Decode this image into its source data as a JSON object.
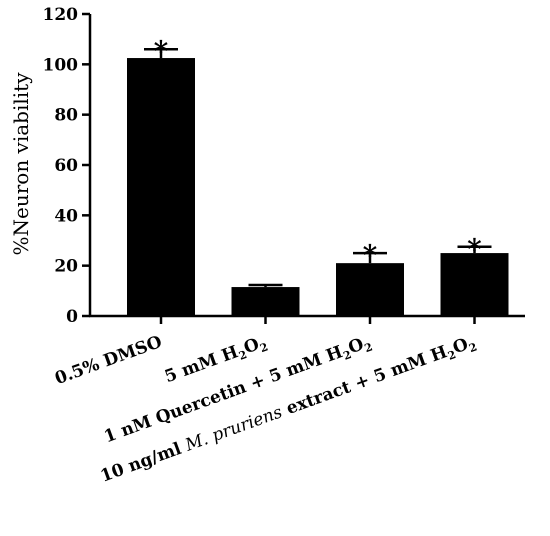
{
  "chart_data": {
    "type": "bar",
    "ylabel": "%Neuron viability",
    "ylim": [
      0,
      120
    ],
    "yticks": [
      0,
      20,
      40,
      60,
      80,
      100,
      120
    ],
    "categories": [
      "0.5% DMSO",
      "5 mM H2O2",
      "1 nM Quercetin + 5 mM H2O2",
      "10 ng/ml M. pruriens extract + 5 mM H2O2"
    ],
    "category_labels": [
      [
        {
          "t": "0.5% DMSO"
        }
      ],
      [
        {
          "t": "5 mM H"
        },
        {
          "t": "2",
          "sub": true
        },
        {
          "t": "O"
        },
        {
          "t": "2",
          "sub": true
        }
      ],
      [
        {
          "t": "1 nM Quercetin + 5 mM H"
        },
        {
          "t": "2",
          "sub": true
        },
        {
          "t": "O"
        },
        {
          "t": "2",
          "sub": true
        }
      ],
      [
        {
          "t": "10 ng/ml "
        },
        {
          "t": "M. pruriens",
          "italic": true
        },
        {
          "t": " extract + 5 mM H"
        },
        {
          "t": "2",
          "sub": true
        },
        {
          "t": "O"
        },
        {
          "t": "2",
          "sub": true
        }
      ]
    ],
    "values": [
      102.5,
      11.5,
      21,
      25
    ],
    "errors": [
      3.5,
      0.8,
      4,
      2.5
    ],
    "significance": [
      "*",
      "",
      "*",
      "*"
    ],
    "color": "#000000",
    "grid": false
  }
}
